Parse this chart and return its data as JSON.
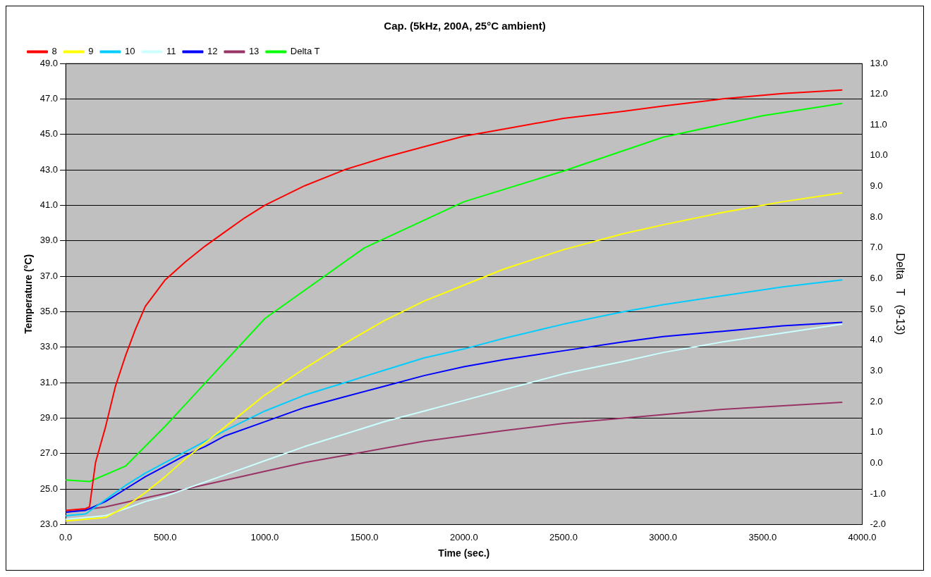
{
  "chart_data": {
    "type": "line",
    "title": "Cap. (5kHz, 200A, 25°C ambient)",
    "xlabel": "Time (sec.)",
    "ylabel": "Temperature (°C)",
    "y2label": "Delta   T   (9-13)",
    "xlim": [
      0,
      4000
    ],
    "xticks": [
      {
        "value": 0,
        "label": "0.0"
      },
      {
        "value": 500,
        "label": "500.0"
      },
      {
        "value": 1000,
        "label": "1000.0"
      },
      {
        "value": 1500,
        "label": "1500.0"
      },
      {
        "value": 2000,
        "label": "2000.0"
      },
      {
        "value": 2500,
        "label": "2500.0"
      },
      {
        "value": 3000,
        "label": "3000.0"
      },
      {
        "value": 3500,
        "label": "3500.0"
      },
      {
        "value": 4000,
        "label": "4000.0"
      }
    ],
    "ylim": [
      23,
      49
    ],
    "yticks": [
      {
        "value": 23,
        "label": "23.0"
      },
      {
        "value": 25,
        "label": "25.0"
      },
      {
        "value": 27,
        "label": "27.0"
      },
      {
        "value": 29,
        "label": "29.0"
      },
      {
        "value": 31,
        "label": "31.0"
      },
      {
        "value": 33,
        "label": "33.0"
      },
      {
        "value": 35,
        "label": "35.0"
      },
      {
        "value": 37,
        "label": "37.0"
      },
      {
        "value": 39,
        "label": "39.0"
      },
      {
        "value": 41,
        "label": "41.0"
      },
      {
        "value": 43,
        "label": "43.0"
      },
      {
        "value": 45,
        "label": "45.0"
      },
      {
        "value": 47,
        "label": "47.0"
      },
      {
        "value": 49,
        "label": "49.0"
      }
    ],
    "y2lim": [
      -2,
      13
    ],
    "y2ticks": [
      {
        "value": -2,
        "label": "-2.0"
      },
      {
        "value": -1,
        "label": "-1.0"
      },
      {
        "value": 0,
        "label": "0.0"
      },
      {
        "value": 1,
        "label": "1.0"
      },
      {
        "value": 2,
        "label": "2.0"
      },
      {
        "value": 3,
        "label": "3.0"
      },
      {
        "value": 4,
        "label": "4.0"
      },
      {
        "value": 5,
        "label": "5.0"
      },
      {
        "value": 6,
        "label": "6.0"
      },
      {
        "value": 7,
        "label": "7.0"
      },
      {
        "value": 8,
        "label": "8.0"
      },
      {
        "value": 9,
        "label": "9.0"
      },
      {
        "value": 10,
        "label": "10.0"
      },
      {
        "value": 11,
        "label": "11.0"
      },
      {
        "value": 12,
        "label": "12.0"
      },
      {
        "value": 13,
        "label": "13.0"
      }
    ],
    "grid": "y",
    "legend": "top left",
    "marker": "none",
    "line_style": "solid",
    "series": [
      {
        "name": "8",
        "color": "#ff0000",
        "x": [
          0,
          100,
          120,
          150,
          200,
          250,
          300,
          350,
          400,
          500,
          600,
          700,
          800,
          900,
          1000,
          1200,
          1400,
          1600,
          1800,
          2000,
          2200,
          2500,
          2800,
          3000,
          3300,
          3600,
          3900
        ],
        "values": [
          23.8,
          23.9,
          24.0,
          26.5,
          28.5,
          30.8,
          32.5,
          34.0,
          35.3,
          36.8,
          37.8,
          38.7,
          39.5,
          40.3,
          41.0,
          42.1,
          43.0,
          43.7,
          44.3,
          44.9,
          45.3,
          45.9,
          46.3,
          46.6,
          47.0,
          47.3,
          47.5
        ]
      },
      {
        "name": "9",
        "color": "#ffff00",
        "x": [
          0,
          200,
          300,
          400,
          500,
          600,
          700,
          800,
          1000,
          1200,
          1400,
          1600,
          1800,
          2000,
          2200,
          2500,
          2800,
          3000,
          3300,
          3600,
          3900
        ],
        "values": [
          23.2,
          23.4,
          24.0,
          24.8,
          25.7,
          26.7,
          27.6,
          28.5,
          30.3,
          31.8,
          33.2,
          34.5,
          35.6,
          36.5,
          37.4,
          38.5,
          39.4,
          39.9,
          40.6,
          41.2,
          41.7
        ]
      },
      {
        "name": "10",
        "color": "#00ccff",
        "x": [
          0,
          100,
          200,
          300,
          400,
          500,
          600,
          700,
          800,
          1000,
          1200,
          1400,
          1600,
          1800,
          2000,
          2200,
          2500,
          2800,
          3000,
          3300,
          3600,
          3900
        ],
        "values": [
          23.5,
          23.6,
          24.4,
          25.2,
          25.9,
          26.5,
          27.1,
          27.7,
          28.3,
          29.4,
          30.3,
          31.0,
          31.7,
          32.4,
          32.9,
          33.5,
          34.3,
          35.0,
          35.4,
          35.9,
          36.4,
          36.8
        ]
      },
      {
        "name": "11",
        "color": "#ccffff",
        "x": [
          0,
          200,
          300,
          400,
          500,
          600,
          800,
          1000,
          1200,
          1400,
          1600,
          1800,
          2000,
          2200,
          2500,
          2800,
          3000,
          3300,
          3600,
          3900
        ],
        "values": [
          23.3,
          23.5,
          23.9,
          24.3,
          24.6,
          25.0,
          25.8,
          26.6,
          27.4,
          28.1,
          28.8,
          29.4,
          30.0,
          30.6,
          31.5,
          32.2,
          32.7,
          33.3,
          33.8,
          34.3
        ]
      },
      {
        "name": "12",
        "color": "#0000ff",
        "x": [
          0,
          100,
          200,
          300,
          400,
          500,
          600,
          700,
          800,
          1000,
          1200,
          1400,
          1600,
          1800,
          2000,
          2200,
          2500,
          2800,
          3000,
          3300,
          3600,
          3900
        ],
        "values": [
          23.7,
          23.8,
          24.3,
          25.0,
          25.7,
          26.3,
          26.9,
          27.4,
          28.0,
          28.8,
          29.6,
          30.2,
          30.8,
          31.4,
          31.9,
          32.3,
          32.8,
          33.3,
          33.6,
          33.9,
          34.2,
          34.4
        ]
      },
      {
        "name": "13",
        "color": "#993366",
        "x": [
          0,
          200,
          400,
          600,
          800,
          1000,
          1200,
          1400,
          1600,
          1800,
          2000,
          2200,
          2500,
          2800,
          3000,
          3300,
          3600,
          3900
        ],
        "values": [
          23.7,
          24.0,
          24.5,
          25.0,
          25.5,
          26.0,
          26.5,
          26.9,
          27.3,
          27.7,
          28.0,
          28.3,
          28.7,
          29.0,
          29.2,
          29.5,
          29.7,
          29.9
        ]
      },
      {
        "name": "Delta T",
        "color": "#00ff00",
        "axis": "y2",
        "x": [
          0,
          120,
          300,
          500,
          700,
          1000,
          1500,
          2000,
          2500,
          3000,
          3500,
          3900
        ],
        "values": [
          -0.55,
          -0.6,
          -0.1,
          1.2,
          2.6,
          4.7,
          7.0,
          8.5,
          9.5,
          10.6,
          11.3,
          11.7
        ]
      }
    ]
  }
}
